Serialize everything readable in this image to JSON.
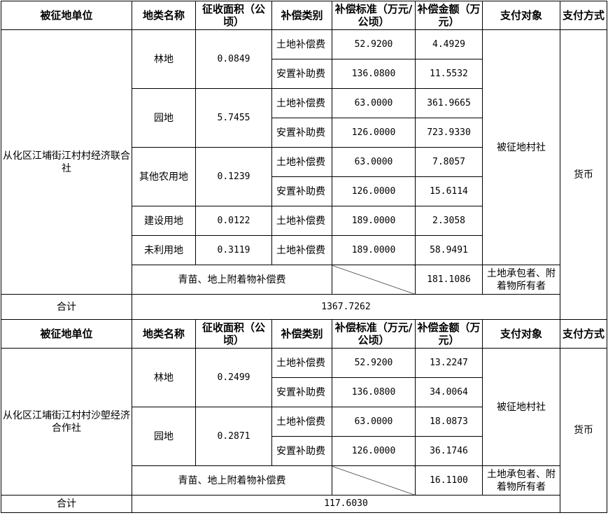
{
  "header": {
    "unit": "被征地单位",
    "land_type": "地类名称",
    "area": "征收面积（公顷）",
    "comp_type": "补偿类别",
    "standard": "补偿标准（万元/公顷）",
    "amount": "补偿金额（万元）",
    "payee": "支付对象",
    "method": "支付方式"
  },
  "t1": {
    "unit": "从化区江埔街江村村经济联合社",
    "rows": [
      {
        "land": "林地",
        "area": "0.0849",
        "items": [
          {
            "cat": "土地补偿费",
            "std": "52.9200",
            "amt": "4.4929"
          },
          {
            "cat": "安置补助费",
            "std": "136.0800",
            "amt": "11.5532"
          }
        ]
      },
      {
        "land": "园地",
        "area": "5.7455",
        "items": [
          {
            "cat": "土地补偿费",
            "std": "63.0000",
            "amt": "361.9665"
          },
          {
            "cat": "安置补助费",
            "std": "126.0000",
            "amt": "723.9330"
          }
        ]
      },
      {
        "land": "其他农用地",
        "area": "0.1239",
        "items": [
          {
            "cat": "土地补偿费",
            "std": "63.0000",
            "amt": "7.8057"
          },
          {
            "cat": "安置补助费",
            "std": "126.0000",
            "amt": "15.6114"
          }
        ]
      },
      {
        "land": "建设用地",
        "area": "0.0122",
        "items": [
          {
            "cat": "土地补偿费",
            "std": "189.0000",
            "amt": "2.3058"
          }
        ]
      },
      {
        "land": "未利用地",
        "area": "0.3119",
        "items": [
          {
            "cat": "土地补偿费",
            "std": "189.0000",
            "amt": "58.9491"
          }
        ]
      }
    ],
    "payee": "被征地村社",
    "method": "货币",
    "attach_label": "青苗、地上附着物补偿费",
    "attach_amt": "181.1086",
    "attach_payee": "土地承包者、附着物所有者",
    "total_label": "合计",
    "total": "1367.7262"
  },
  "t2": {
    "unit": "从化区江埔街江村村沙塱经济合作社",
    "rows": [
      {
        "land": "林地",
        "area": "0.2499",
        "items": [
          {
            "cat": "土地补偿费",
            "std": "52.9200",
            "amt": "13.2247"
          },
          {
            "cat": "安置补助费",
            "std": "136.0800",
            "amt": "34.0064"
          }
        ]
      },
      {
        "land": "园地",
        "area": "0.2871",
        "items": [
          {
            "cat": "土地补偿费",
            "std": "63.0000",
            "amt": "18.0873"
          },
          {
            "cat": "安置补助费",
            "std": "126.0000",
            "amt": "36.1746"
          }
        ]
      }
    ],
    "payee": "被征地村社",
    "method": "货币",
    "attach_label": "青苗、地上附着物补偿费",
    "attach_amt": "16.1100",
    "attach_payee": "土地承包者、附着物所有者",
    "total_label": "合计",
    "total": "117.6030"
  }
}
